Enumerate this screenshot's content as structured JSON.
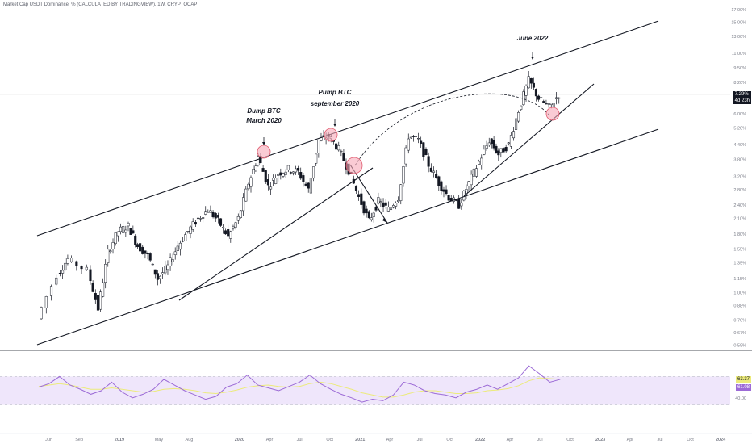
{
  "header": {
    "title": "Market Cap USDT Dominance, % (CALCULATED BY TRADINGVIEW), 1W, CRYPTOCAP"
  },
  "price_axis": {
    "labels": [
      "17.00%",
      "15.00%",
      "13.00%",
      "11.00%",
      "9.50%",
      "8.20%",
      "7.00%",
      "6.00%",
      "5.20%",
      "4.40%",
      "3.80%",
      "3.20%",
      "2.80%",
      "2.40%",
      "2.10%",
      "1.80%",
      "1.55%",
      "1.35%",
      "1.15%",
      "1.00%",
      "0.88%",
      "0.76%",
      "0.67%",
      "0.59%"
    ],
    "current_price": "7.29%",
    "countdown": "4d 23h"
  },
  "rsi_axis": {
    "labels": [
      "40.00"
    ],
    "value_a": "63.37",
    "value_b": "61.08"
  },
  "time_axis": [
    "Jun",
    "Sep",
    "2019",
    "May",
    "Aug",
    "2020",
    "Apr",
    "Jul",
    "Oct",
    "2021",
    "Apr",
    "Jul",
    "Oct",
    "2022",
    "Apr",
    "Jul",
    "Oct",
    "2023",
    "Apr",
    "Jul",
    "Oct",
    "2024"
  ],
  "annotations": [
    {
      "line1": "Dump BTC",
      "line2": "March 2020"
    },
    {
      "line1": "Pump BTC",
      "line2": "september 2020"
    },
    {
      "line1": "June 2022",
      "line2": ""
    }
  ],
  "colors": {
    "up": "#ffffff",
    "down": "#131722",
    "rsi": "#9c6bd6",
    "rsi_ma": "#eceb7a",
    "rsi_band": "#efe6fb",
    "marker": "#f7a8b8",
    "marker_stroke": "#e05a6e"
  },
  "chart_data": {
    "type": "candlestick",
    "title": "Market Cap USDT Dominance, % (CALCULATED BY TRADINGVIEW), 1W, CRYPTOCAP",
    "scale": "log",
    "ylim": [
      0.57,
      18
    ],
    "current": 7.29,
    "x_ticks": [
      "Jun",
      "Sep",
      "2019",
      "May",
      "Aug",
      "2020",
      "Apr",
      "Jul",
      "Oct",
      "2021",
      "Apr",
      "Jul",
      "Oct",
      "2022",
      "Apr",
      "Jul",
      "Oct",
      "2023",
      "Apr",
      "Jul",
      "Oct",
      "2024"
    ],
    "price_path": [
      {
        "date": "2018-05",
        "value": 0.77
      },
      {
        "date": "2018-07",
        "value": 1.2
      },
      {
        "date": "2018-08",
        "value": 1.4
      },
      {
        "date": "2018-10",
        "value": 1.25
      },
      {
        "date": "2018-11",
        "value": 0.85
      },
      {
        "date": "2018-12",
        "value": 1.5
      },
      {
        "date": "2019-01",
        "value": 1.85
      },
      {
        "date": "2019-02",
        "value": 1.95
      },
      {
        "date": "2019-03",
        "value": 1.6
      },
      {
        "date": "2019-04",
        "value": 1.45
      },
      {
        "date": "2019-05",
        "value": 1.15
      },
      {
        "date": "2019-06",
        "value": 1.3
      },
      {
        "date": "2019-07",
        "value": 1.6
      },
      {
        "date": "2019-08",
        "value": 1.85
      },
      {
        "date": "2019-09",
        "value": 2.1
      },
      {
        "date": "2019-10",
        "value": 2.3
      },
      {
        "date": "2019-11",
        "value": 2.05
      },
      {
        "date": "2019-12",
        "value": 1.75
      },
      {
        "date": "2020-01",
        "value": 2.1
      },
      {
        "date": "2020-02",
        "value": 3.0
      },
      {
        "date": "2020-03",
        "value": 3.9
      },
      {
        "date": "2020-04",
        "value": 2.9
      },
      {
        "date": "2020-05",
        "value": 3.3
      },
      {
        "date": "2020-06",
        "value": 3.45
      },
      {
        "date": "2020-07",
        "value": 3.35
      },
      {
        "date": "2020-08",
        "value": 2.8
      },
      {
        "date": "2020-09",
        "value": 4.6
      },
      {
        "date": "2020-10",
        "value": 4.8
      },
      {
        "date": "2020-11",
        "value": 4.2
      },
      {
        "date": "2020-12",
        "value": 3.4
      },
      {
        "date": "2021-01",
        "value": 2.6
      },
      {
        "date": "2021-02",
        "value": 2.05
      },
      {
        "date": "2021-03",
        "value": 2.5
      },
      {
        "date": "2021-04",
        "value": 2.3
      },
      {
        "date": "2021-05",
        "value": 2.6
      },
      {
        "date": "2021-06",
        "value": 4.8
      },
      {
        "date": "2021-07",
        "value": 4.6
      },
      {
        "date": "2021-08",
        "value": 3.6
      },
      {
        "date": "2021-09",
        "value": 3.0
      },
      {
        "date": "2021-10",
        "value": 2.6
      },
      {
        "date": "2021-11",
        "value": 2.4
      },
      {
        "date": "2021-12",
        "value": 3.0
      },
      {
        "date": "2022-01",
        "value": 3.7
      },
      {
        "date": "2022-02",
        "value": 4.6
      },
      {
        "date": "2022-03",
        "value": 4.0
      },
      {
        "date": "2022-04",
        "value": 4.4
      },
      {
        "date": "2022-05",
        "value": 6.2
      },
      {
        "date": "2022-06",
        "value": 8.4
      },
      {
        "date": "2022-07",
        "value": 7.0
      },
      {
        "date": "2022-08",
        "value": 6.4
      },
      {
        "date": "2022-09",
        "value": 7.29
      }
    ],
    "rsi": {
      "values": [
        55,
        60,
        70,
        58,
        52,
        45,
        50,
        62,
        48,
        40,
        45,
        52,
        66,
        58,
        50,
        44,
        38,
        42,
        55,
        60,
        72,
        58,
        54,
        50,
        56,
        62,
        72,
        60,
        52,
        45,
        40,
        34,
        38,
        36,
        44,
        62,
        58,
        50,
        46,
        44,
        40,
        48,
        52,
        58,
        52,
        60,
        68,
        85,
        74,
        62,
        66
      ],
      "ma": [
        56,
        58,
        60,
        58,
        55,
        52,
        52,
        54,
        52,
        50,
        48,
        49,
        52,
        53,
        52,
        50,
        47,
        46,
        48,
        51,
        55,
        57,
        58,
        56,
        55,
        56,
        60,
        62,
        60,
        56,
        52,
        47,
        44,
        41,
        41,
        44,
        48,
        50,
        50,
        48,
        46,
        46,
        47,
        50,
        51,
        53,
        57,
        64,
        68,
        67,
        66
      ],
      "levels": [
        70,
        30
      ],
      "ticks": [
        "40.00"
      ]
    },
    "trendlines": [
      "upper channel",
      "middle channel",
      "lower channel",
      "rising support 2019-2020",
      "rising support 2021-2022",
      "decline arrow 2021"
    ],
    "annotations": [
      "Dump BTC March 2020",
      "Pump BTC september 2020",
      "June 2022"
    ]
  }
}
